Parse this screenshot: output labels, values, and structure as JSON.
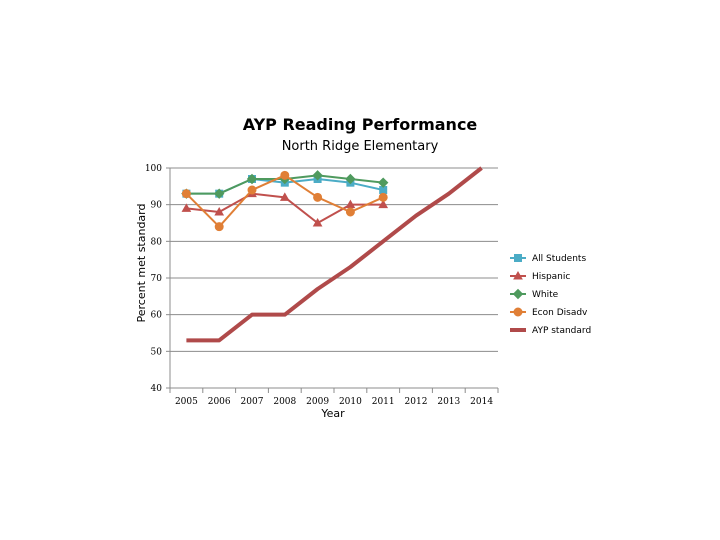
{
  "chart_data": {
    "type": "line",
    "title": "AYP Reading Performance",
    "subtitle": "North Ridge Elementary",
    "xlabel": "Year",
    "ylabel": "Percent met standard",
    "categories": [
      "2005",
      "2006",
      "2007",
      "2008",
      "2009",
      "2010",
      "2011",
      "2012",
      "2013",
      "2014"
    ],
    "ylim": [
      40,
      100
    ],
    "yticks": [
      40,
      50,
      60,
      70,
      80,
      90,
      100
    ],
    "grid": true,
    "legend_position": "right",
    "series": [
      {
        "name": "All Students",
        "color": "#4BACC6",
        "marker": "square",
        "values": [
          93,
          93,
          97,
          96,
          97,
          96,
          94,
          null,
          null,
          null
        ]
      },
      {
        "name": "Hispanic",
        "color": "#C0504D",
        "marker": "triangle",
        "values": [
          89,
          88,
          93,
          92,
          85,
          90,
          90,
          null,
          null,
          null
        ]
      },
      {
        "name": "White",
        "color": "#4F9A5E",
        "marker": "diamond",
        "values": [
          93,
          93,
          97,
          97,
          98,
          97,
          96,
          null,
          null,
          null
        ]
      },
      {
        "name": "Econ Disadv",
        "color": "#E07F36",
        "marker": "circle",
        "values": [
          93,
          84,
          94,
          98,
          92,
          88,
          92,
          null,
          null,
          null
        ]
      },
      {
        "name": "AYP standard",
        "color": "#B04A4A",
        "marker": "none",
        "values": [
          53,
          53,
          60,
          60,
          67,
          73,
          80,
          87,
          93,
          100
        ]
      }
    ]
  }
}
